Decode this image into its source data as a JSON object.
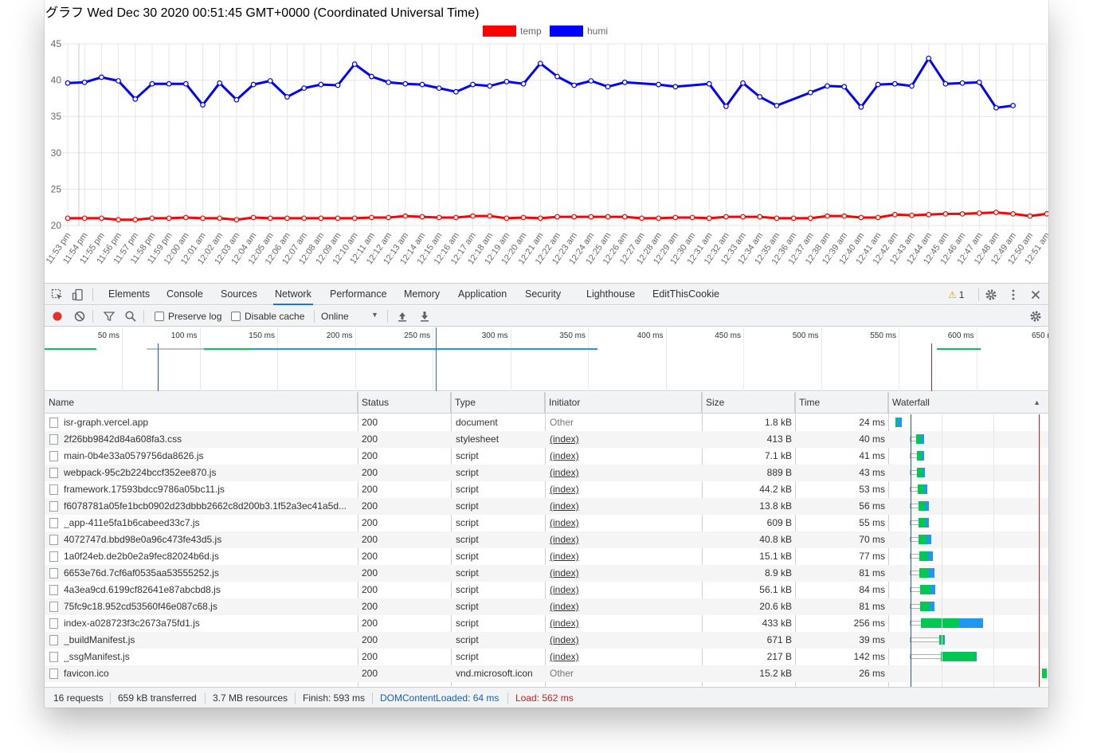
{
  "page": {
    "title": "グラフ Wed Dec 30 2020 00:51:45 GMT+0000 (Coordinated Universal Time)"
  },
  "chart_data": {
    "type": "line",
    "x": [
      "11:53 pm",
      "11:54 pm",
      "11:55 pm",
      "11:56 pm",
      "11:57 pm",
      "11:58 pm",
      "11:59 pm",
      "12:00 am",
      "12:01 am",
      "12:02 am",
      "12:03 am",
      "12:04 am",
      "12:05 am",
      "12:06 am",
      "12:07 am",
      "12:08 am",
      "12:09 am",
      "12:10 am",
      "12:11 am",
      "12:12 am",
      "12:13 am",
      "12:14 am",
      "12:15 am",
      "12:16 am",
      "12:17 am",
      "12:18 am",
      "12:19 am",
      "12:20 am",
      "12:21 am",
      "12:22 am",
      "12:23 am",
      "12:24 am",
      "12:25 am",
      "12:26 am",
      "12:27 am",
      "12:28 am",
      "12:29 am",
      "12:30 am",
      "12:31 am",
      "12:32 am",
      "12:33 am",
      "12:34 am",
      "12:35 am",
      "12:36 am",
      "12:37 am",
      "12:38 am",
      "12:39 am",
      "12:40 am",
      "12:41 am",
      "12:42 am",
      "12:43 am",
      "12:44 am",
      "12:45 am",
      "12:46 am",
      "12:47 am",
      "12:48 am",
      "12:49 am",
      "12:50 am",
      "12:51 am"
    ],
    "series": [
      {
        "name": "temp",
        "color": "#ff0000",
        "values": [
          21.0,
          21.0,
          21.0,
          20.8,
          20.8,
          21.0,
          21.0,
          21.1,
          21.0,
          21.0,
          20.8,
          21.1,
          21.0,
          21.0,
          21.0,
          21.0,
          21.0,
          21.0,
          21.1,
          21.1,
          21.3,
          21.2,
          21.1,
          21.1,
          21.3,
          21.3,
          21.0,
          21.1,
          21.0,
          21.2,
          21.2,
          21.2,
          21.2,
          21.2,
          21.0,
          21.0,
          21.1,
          21.1,
          21.0,
          21.2,
          21.2,
          21.2,
          21.0,
          21.0,
          21.0,
          21.3,
          21.3,
          21.1,
          21.1,
          21.5,
          21.4,
          21.5,
          21.6,
          21.6,
          21.7,
          21.8,
          21.6,
          21.3,
          21.6
        ]
      },
      {
        "name": "humi",
        "color": "#0000ff",
        "values": [
          39.6,
          39.7,
          40.4,
          39.9,
          37.4,
          39.5,
          39.5,
          39.5,
          36.6,
          39.6,
          37.3,
          39.4,
          39.9,
          37.7,
          38.9,
          39.4,
          39.3,
          42.2,
          40.5,
          39.7,
          39.5,
          39.4,
          38.9,
          38.4,
          39.4,
          39.2,
          39.8,
          39.5,
          42.3,
          40.5,
          39.3,
          39.9,
          39.1,
          39.7,
          null,
          39.4,
          39.1,
          null,
          39.5,
          36.4,
          39.6,
          37.7,
          36.5,
          null,
          38.3,
          39.2,
          39.1,
          36.3,
          39.4,
          39.5,
          39.2,
          43.0,
          39.5,
          39.6,
          39.7,
          36.2,
          36.5,
          null,
          null
        ]
      }
    ],
    "ylim": [
      20,
      45
    ],
    "yticks": [
      20,
      25,
      30,
      35,
      40,
      45
    ],
    "grid": true,
    "legend": "top-center"
  },
  "devtools": {
    "tabs": [
      "Elements",
      "Console",
      "Sources",
      "Network",
      "Performance",
      "Memory",
      "Application",
      "Security",
      "Lighthouse",
      "EditThisCookie"
    ],
    "active_tab": "Network",
    "warning_count": "1",
    "toolbar": {
      "preserve_log": "Preserve log",
      "disable_cache": "Disable cache",
      "throttle": "Online"
    },
    "overview_ticks": [
      "50 ms",
      "100 ms",
      "150 ms",
      "200 ms",
      "250 ms",
      "300 ms",
      "350 ms",
      "400 ms",
      "450 ms",
      "500 ms",
      "550 ms",
      "600 ms",
      "650 n"
    ],
    "columns": [
      "Name",
      "Status",
      "Type",
      "Initiator",
      "Size",
      "Time",
      "Waterfall"
    ],
    "requests": [
      {
        "name": "isr-graph.vercel.app",
        "status": "200",
        "type": "document",
        "initiator": "Other",
        "size": "1.8 kB",
        "time": "24 ms"
      },
      {
        "name": "2f26bb9842d84a608fa3.css",
        "status": "200",
        "type": "stylesheet",
        "initiator": "(index)",
        "size": "413 B",
        "time": "40 ms"
      },
      {
        "name": "main-0b4e33a0579756da8626.js",
        "status": "200",
        "type": "script",
        "initiator": "(index)",
        "size": "7.1 kB",
        "time": "41 ms"
      },
      {
        "name": "webpack-95c2b224bccf352ee870.js",
        "status": "200",
        "type": "script",
        "initiator": "(index)",
        "size": "889 B",
        "time": "43 ms"
      },
      {
        "name": "framework.17593bdcc9786a05bc11.js",
        "status": "200",
        "type": "script",
        "initiator": "(index)",
        "size": "44.2 kB",
        "time": "53 ms"
      },
      {
        "name": "f6078781a05fe1bcb0902d23dbbb2662c8d200b3.1f52a3ec41a5d...",
        "status": "200",
        "type": "script",
        "initiator": "(index)",
        "size": "13.8 kB",
        "time": "56 ms"
      },
      {
        "name": "_app-411e5fa1b6cabeed33c7.js",
        "status": "200",
        "type": "script",
        "initiator": "(index)",
        "size": "609 B",
        "time": "55 ms"
      },
      {
        "name": "4072747d.bbd98e0a96c473fe43d5.js",
        "status": "200",
        "type": "script",
        "initiator": "(index)",
        "size": "40.8 kB",
        "time": "70 ms"
      },
      {
        "name": "1a0f24eb.de2b0e2a9fec82024b6d.js",
        "status": "200",
        "type": "script",
        "initiator": "(index)",
        "size": "15.1 kB",
        "time": "77 ms"
      },
      {
        "name": "6653e76d.7cf6af0535aa53555252.js",
        "status": "200",
        "type": "script",
        "initiator": "(index)",
        "size": "8.9 kB",
        "time": "81 ms"
      },
      {
        "name": "4a3ea9cd.6199cf82641e87abcbd8.js",
        "status": "200",
        "type": "script",
        "initiator": "(index)",
        "size": "56.1 kB",
        "time": "84 ms"
      },
      {
        "name": "75fc9c18.952cd53560f46e087c68.js",
        "status": "200",
        "type": "script",
        "initiator": "(index)",
        "size": "20.6 kB",
        "time": "81 ms"
      },
      {
        "name": "index-a028723f3c2673a75fd1.js",
        "status": "200",
        "type": "script",
        "initiator": "(index)",
        "size": "433 kB",
        "time": "256 ms"
      },
      {
        "name": "_buildManifest.js",
        "status": "200",
        "type": "script",
        "initiator": "(index)",
        "size": "671 B",
        "time": "39 ms"
      },
      {
        "name": "_ssgManifest.js",
        "status": "200",
        "type": "script",
        "initiator": "(index)",
        "size": "217 B",
        "time": "142 ms"
      },
      {
        "name": "favicon.ico",
        "status": "200",
        "type": "vnd.microsoft.icon",
        "initiator": "Other",
        "size": "15.2 kB",
        "time": "26 ms"
      }
    ],
    "status_bar": {
      "requests": "16 requests",
      "transferred": "659 kB transferred",
      "resources": "3.7 MB resources",
      "finish": "Finish: 593 ms",
      "dcl": "DOMContentLoaded: 64 ms",
      "load": "Load: 562 ms"
    },
    "colors": {
      "accent": "#1a73e8",
      "dcl": "#1a5fb4",
      "load": "#c5221f",
      "waiting": "#00c853",
      "download": "#2196f3"
    }
  }
}
